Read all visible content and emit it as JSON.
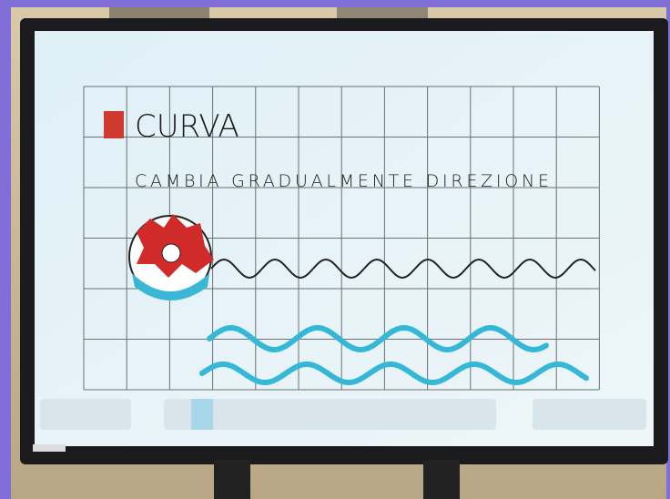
{
  "board": {
    "title": "CURVA",
    "subtitle": "CAMBIA GRADUALMENTE DIREZIONE"
  }
}
